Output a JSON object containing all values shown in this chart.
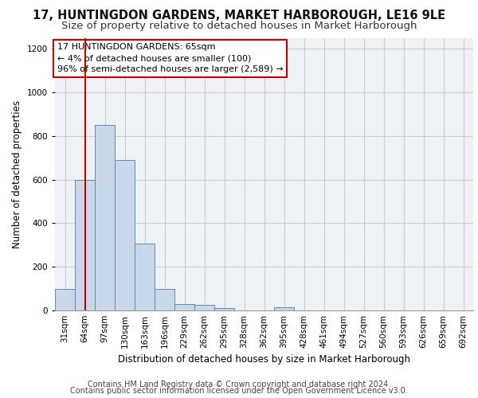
{
  "title": "17, HUNTINGDON GARDENS, MARKET HARBOROUGH, LE16 9LE",
  "subtitle": "Size of property relative to detached houses in Market Harborough",
  "xlabel": "Distribution of detached houses by size in Market Harborough",
  "ylabel": "Number of detached properties",
  "footer1": "Contains HM Land Registry data © Crown copyright and database right 2024.",
  "footer2": "Contains public sector information licensed under the Open Government Licence v3.0.",
  "annotation_line1": "17 HUNTINGDON GARDENS: 65sqm",
  "annotation_line2": "← 4% of detached houses are smaller (100)",
  "annotation_line3": "96% of semi-detached houses are larger (2,589) →",
  "bar_color": "#c8d8e8",
  "bar_edge_color": "#5080a8",
  "bar_values": [
    100,
    600,
    850,
    690,
    305,
    100,
    30,
    25,
    10,
    0,
    0,
    15,
    0,
    0,
    0,
    0,
    0,
    0,
    0,
    0,
    0
  ],
  "bin_labels": [
    "31sqm",
    "64sqm",
    "97sqm",
    "130sqm",
    "163sqm",
    "196sqm",
    "229sqm",
    "262sqm",
    "295sqm",
    "328sqm",
    "362sqm",
    "395sqm",
    "428sqm",
    "461sqm",
    "494sqm",
    "527sqm",
    "560sqm",
    "593sqm",
    "626sqm",
    "659sqm",
    "692sqm"
  ],
  "red_line_x": 1.03,
  "ylim": [
    0,
    1250
  ],
  "yticks": [
    0,
    200,
    400,
    600,
    800,
    1000,
    1200
  ],
  "grid_color": "#cccccc",
  "background_color": "#eef2f7",
  "annotation_box_color": "#ffffff",
  "annotation_box_edge": "#cc0000",
  "red_line_color": "#cc0000",
  "title_fontsize": 10.5,
  "subtitle_fontsize": 9.5,
  "axis_label_fontsize": 8.5,
  "tick_fontsize": 7.5,
  "annotation_fontsize": 8,
  "footer_fontsize": 7
}
